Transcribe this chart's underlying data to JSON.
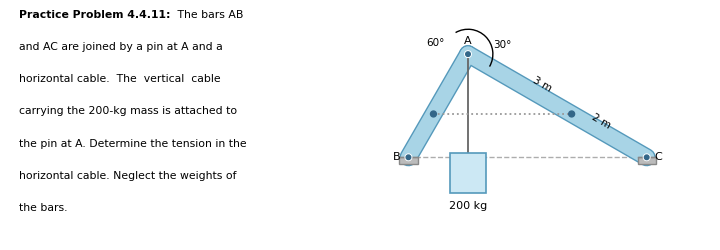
{
  "fig_width": 7.2,
  "fig_height": 2.51,
  "dpi": 100,
  "bar_color": "#a8d4e6",
  "bar_edge_color": "#5599bb",
  "ground_color": "#bbbbbb",
  "ground_edge": "#888888",
  "dashed_color": "#999999",
  "box_face": "#cce8f4",
  "box_edge": "#5599bb",
  "pin_color": "#336688",
  "text_color": "#000000",
  "label_A": "A",
  "label_B": "B",
  "label_C": "C",
  "label_60": "60°",
  "label_30": "30°",
  "label_3m": "3 m",
  "label_2m": "2 m",
  "label_200kg": "200 kg",
  "bold_text": "Practice Problem 4.4.11:",
  "line2": "and AC are joined by a pin at A and a",
  "line3": "horizontal cable.  The  vertical  cable",
  "line4": "carrying the 200-kg mass is attached to",
  "line5": "the pin at A. Determine the tension in the",
  "line6": "horizontal cable. Neglect the weights of",
  "line7": "the bars.",
  "line1_suffix": " The bars AB",
  "pin_r": 0.035,
  "bar_lw": 11,
  "cable_lw": 1.3
}
